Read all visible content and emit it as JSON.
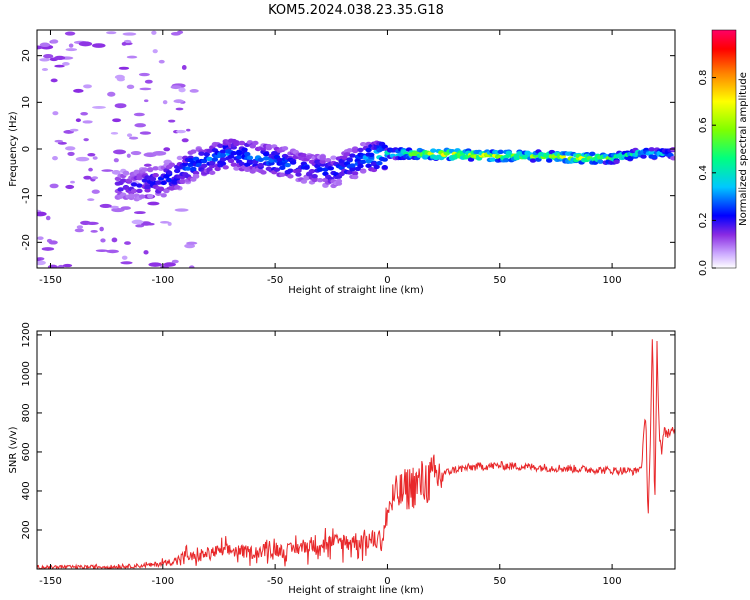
{
  "title": "KOM5.2024.038.23.35.G18",
  "chart_data": [
    {
      "type": "heatmap",
      "xlabel": "Height of straight line (km)",
      "ylabel": "Frequency (Hz)",
      "xlim": [
        -156,
        128
      ],
      "ylim": [
        -25.5,
        25.5
      ],
      "xticks": [
        -150,
        -100,
        -50,
        0,
        50,
        100
      ],
      "yticks": [
        -20,
        -10,
        0,
        10,
        20
      ],
      "colorbar": {
        "label": "Normalized spectral amplitude",
        "range": [
          0,
          1
        ],
        "ticks": [
          "0.0",
          "0.2",
          "0.4",
          "0.6",
          "0.8"
        ],
        "colors": [
          "#ffffff",
          "#ccaaff",
          "#8a2be2",
          "#0000ff",
          "#00c8ff",
          "#00ff80",
          "#7fff00",
          "#ffff00",
          "#ff8000",
          "#ff0000",
          "#ff0066"
        ]
      },
      "ridge": {
        "x": [
          -120,
          -100,
          -85,
          -70,
          -50,
          -35,
          -25,
          -10,
          0,
          10,
          30,
          50,
          70,
          90,
          100,
          110,
          120,
          128
        ],
        "y": [
          -8,
          -7,
          -3,
          -1,
          -2.5,
          -4,
          -5,
          -2,
          -1,
          -1,
          -1.2,
          -1.5,
          -1.5,
          -2,
          -2,
          -1,
          -1,
          -1
        ],
        "peak_amplitude": [
          0.2,
          0.25,
          0.3,
          0.3,
          0.3,
          0.25,
          0.25,
          0.3,
          0.45,
          0.55,
          0.75,
          0.65,
          0.6,
          0.7,
          0.5,
          0.45,
          0.4,
          0.3
        ]
      }
    },
    {
      "type": "line",
      "xlabel": "Height of straight line (km)",
      "ylabel": "SNR (v/v)",
      "xlim": [
        -156,
        128
      ],
      "ylim": [
        0,
        1220
      ],
      "xticks": [
        -150,
        -100,
        -50,
        0,
        50,
        100
      ],
      "yticks": [
        200,
        400,
        600,
        800,
        1000,
        1200
      ],
      "color": "#e8282a",
      "series": [
        {
          "x": [
            -156,
            -140,
            -120,
            -105,
            -95,
            -90,
            -85,
            -80,
            -75,
            -70,
            -65,
            -60,
            -55,
            -50,
            -45,
            -40,
            -35,
            -30,
            -25,
            -20,
            -15,
            -10,
            -5,
            -2,
            0,
            3,
            6,
            10,
            15,
            20,
            25,
            30,
            40,
            50,
            60,
            70,
            80,
            90,
            100,
            105,
            110,
            113,
            115,
            116,
            117,
            118,
            119,
            120,
            121,
            122,
            123,
            125,
            128
          ],
          "y": [
            10,
            10,
            12,
            20,
            40,
            70,
            60,
            80,
            90,
            95,
            90,
            85,
            95,
            100,
            90,
            110,
            120,
            140,
            130,
            140,
            140,
            150,
            150,
            160,
            300,
            370,
            390,
            420,
            440,
            460,
            490,
            510,
            525,
            530,
            525,
            520,
            515,
            510,
            505,
            505,
            500,
            520,
            800,
            250,
            650,
            1200,
            280,
            1150,
            700,
            600,
            700,
            700,
            700
          ]
        }
      ]
    }
  ]
}
